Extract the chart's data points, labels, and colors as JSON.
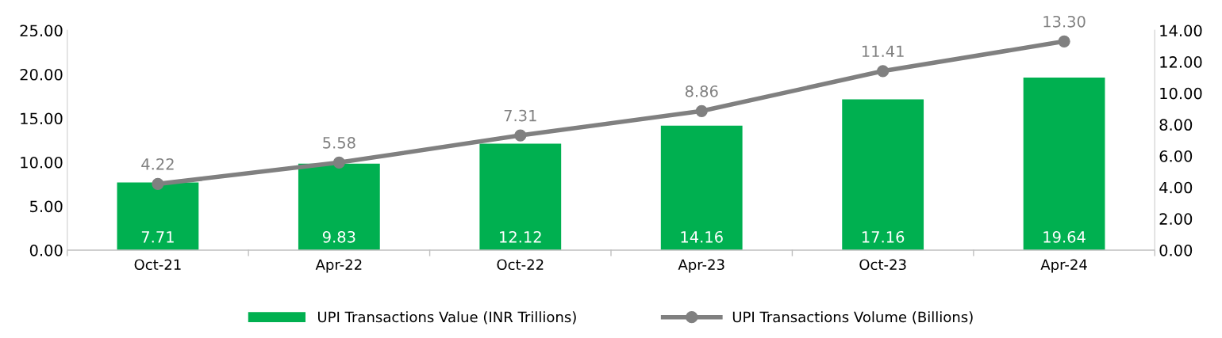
{
  "chart_data": {
    "type": "bar",
    "categories": [
      "Oct-21",
      "Apr-22",
      "Oct-22",
      "Apr-23",
      "Oct-23",
      "Apr-24"
    ],
    "series": [
      {
        "name": "UPI Transactions Value (INR Trillions)",
        "color": "#00b050",
        "values": [
          7.71,
          9.83,
          12.12,
          14.16,
          17.16,
          19.64
        ]
      },
      {
        "name": "UPI Transactions Volume (Billions)",
        "type": "line",
        "axis": "y2",
        "color": "#808080",
        "marker": "circle",
        "values": [
          4.22,
          5.58,
          7.31,
          8.86,
          11.41,
          13.3
        ],
        "value_labels": [
          "4.22",
          "5.58",
          "7.31",
          "8.86",
          "11.41",
          "13.30"
        ]
      }
    ],
    "data_labels": true,
    "ylim": [
      0,
      25
    ],
    "yticks": [
      {
        "value": 0,
        "label": "0.00"
      },
      {
        "value": 5,
        "label": "5.00"
      },
      {
        "value": 10,
        "label": "10.00"
      },
      {
        "value": 15,
        "label": "15.00"
      },
      {
        "value": 20,
        "label": "20.00"
      },
      {
        "value": 25,
        "label": "25.00"
      }
    ],
    "y2lim": [
      0,
      14
    ],
    "y2ticks": [
      {
        "value": 0,
        "label": "0.00"
      },
      {
        "value": 2,
        "label": "2.00"
      },
      {
        "value": 4,
        "label": "4.00"
      },
      {
        "value": 6,
        "label": "6.00"
      },
      {
        "value": 8,
        "label": "8.00"
      },
      {
        "value": 10,
        "label": "10.00"
      },
      {
        "value": 12,
        "label": "12.00"
      },
      {
        "value": 14,
        "label": "14.00"
      }
    ],
    "legend": "bottom",
    "grid": false
  }
}
